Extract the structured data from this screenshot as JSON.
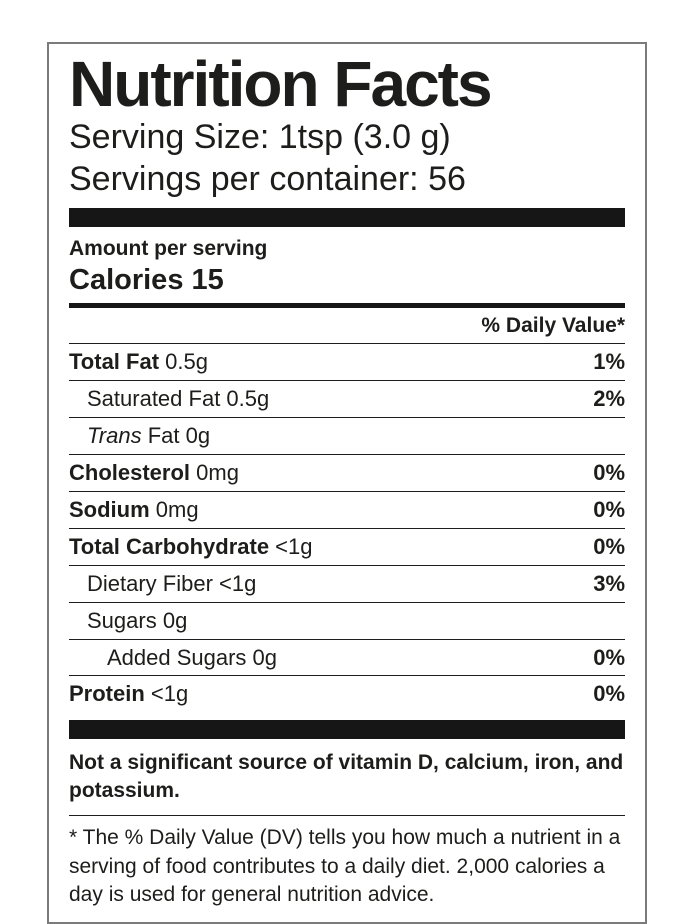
{
  "label": {
    "title": "Nutrition Facts",
    "serving": {
      "size_line": "Serving Size: 1tsp (3.0 g)",
      "per_container_line": "Servings per container: 56"
    },
    "amount_per_serving": "Amount per serving",
    "calories_line": "Calories 15",
    "daily_value_header": "% Daily Value*",
    "nutrients": [
      {
        "prefix_italic": "",
        "name": "Total Fat",
        "amount": "0.5g",
        "dv": "1%",
        "bold": true,
        "indent": 0
      },
      {
        "prefix_italic": "",
        "name": "Saturated Fat",
        "amount": "0.5g",
        "dv": "2%",
        "bold": false,
        "indent": 1
      },
      {
        "prefix_italic": "Trans",
        "name": "Fat",
        "amount": "0g",
        "dv": "",
        "bold": false,
        "indent": 1
      },
      {
        "prefix_italic": "",
        "name": "Cholesterol",
        "amount": "0mg",
        "dv": "0%",
        "bold": true,
        "indent": 0
      },
      {
        "prefix_italic": "",
        "name": "Sodium",
        "amount": "0mg",
        "dv": "0%",
        "bold": true,
        "indent": 0
      },
      {
        "prefix_italic": "",
        "name": "Total Carbohydrate",
        "amount": "<1g",
        "dv": "0%",
        "bold": true,
        "indent": 0
      },
      {
        "prefix_italic": "",
        "name": "Dietary Fiber",
        "amount": "<1g",
        "dv": "3%",
        "bold": false,
        "indent": 1
      },
      {
        "prefix_italic": "",
        "name": "Sugars",
        "amount": "0g",
        "dv": "",
        "bold": false,
        "indent": 1
      },
      {
        "prefix_italic": "",
        "name": "Added Sugars",
        "amount": "0g",
        "dv": "0%",
        "bold": false,
        "indent": 2
      },
      {
        "prefix_italic": "",
        "name": "Protein",
        "amount": "<1g",
        "dv": "0%",
        "bold": true,
        "indent": 0
      }
    ],
    "not_significant": "Not a significant source of vitamin D, calcium, iron, and potassium.",
    "footnote": "* The % Daily Value (DV) tells you how much a nutrient in a serving of food contributes to a daily diet. 2,000 calories a day is used for general nutrition advice.",
    "colors": {
      "text": "#1d1d1b",
      "bar": "#161616",
      "border": "#7b7b7b",
      "background": "#ffffff"
    }
  }
}
